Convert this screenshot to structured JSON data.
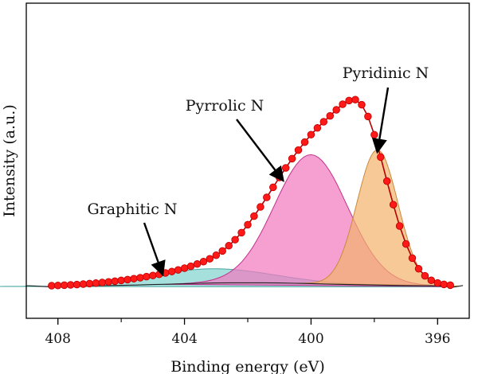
{
  "chart_data": {
    "type": "line",
    "xlabel": "Binding energy (eV)",
    "ylabel": "Intensity (a.u.)",
    "xlim": [
      409,
      395
    ],
    "xticks": [
      408,
      404,
      400,
      396
    ],
    "x_reversed": true,
    "grid": false,
    "background": {
      "x": [
        409,
        408.2,
        408,
        407,
        406,
        405.5,
        405,
        404.5,
        404,
        403.5,
        403,
        402.5,
        402,
        401.5,
        401,
        400.5,
        400,
        399.5,
        399,
        398.5,
        398,
        397.5,
        397,
        396.5,
        396,
        395.5,
        395.2
      ],
      "y": [
        0.5,
        -0.3,
        0.2,
        0.4,
        0.7,
        0.9,
        1.2,
        1.4,
        1.7,
        2.0,
        2.2,
        2.3,
        2.3,
        2.3,
        2.2,
        2.0,
        1.8,
        1.5,
        1.3,
        1.1,
        0.9,
        0.7,
        0.6,
        0.5,
        0.4,
        -0.4,
        0.6
      ]
    },
    "components": [
      {
        "name": "Graphitic N",
        "center": 403.2,
        "height": 9,
        "sigma": 1.9,
        "fill": "#7fd3cf",
        "stroke": "#4aa7a3"
      },
      {
        "name": "Pyrrolic N",
        "center": 400.0,
        "height": 81,
        "sigma": 1.15,
        "fill": "#f277bf",
        "stroke": "#c0308a"
      },
      {
        "name": "Pyridinic N",
        "center": 397.9,
        "height": 85,
        "sigma": 0.65,
        "fill": "#f3b26b",
        "stroke": "#c88a3e"
      }
    ],
    "raw_points": {
      "x": [
        408.2,
        408.0,
        407.8,
        407.6,
        407.4,
        407.2,
        407.0,
        406.8,
        406.6,
        406.4,
        406.2,
        406.0,
        405.8,
        405.6,
        405.4,
        405.2,
        405.0,
        404.8,
        404.6,
        404.4,
        404.2,
        404.0,
        403.8,
        403.6,
        403.4,
        403.2,
        403.0,
        402.8,
        402.6,
        402.4,
        402.2,
        402.0,
        401.8,
        401.6,
        401.4,
        401.2,
        401.0,
        400.8,
        400.6,
        400.4,
        400.2,
        400.0,
        399.8,
        399.6,
        399.4,
        399.2,
        399.0,
        398.8,
        398.6,
        398.4,
        398.2,
        398.0,
        397.8,
        397.6,
        397.4,
        397.2,
        397.0,
        396.8,
        396.6,
        396.4,
        396.2,
        396.0,
        395.8,
        395.6
      ],
      "y": [
        0.5,
        0.6,
        0.8,
        1.0,
        1.2,
        1.5,
        1.8,
        2.1,
        2.5,
        2.9,
        3.3,
        3.8,
        4.3,
        4.9,
        5.5,
        6.2,
        6.9,
        7.6,
        8.5,
        9.4,
        10.4,
        11.5,
        12.7,
        14.1,
        15.6,
        17.4,
        19.6,
        22.3,
        25.6,
        29.4,
        33.8,
        38.8,
        44.2,
        50.0,
        56.0,
        62.3,
        68.5,
        74.5,
        80.3,
        85.7,
        90.7,
        95.4,
        99.6,
        103.5,
        107.2,
        111.0,
        114.5,
        116.8,
        117.4,
        114.2,
        106.8,
        95.3,
        81.3,
        66.2,
        51.4,
        38.0,
        26.7,
        17.8,
        11.1,
        6.7,
        3.9,
        2.2,
        1.3,
        0.8
      ]
    },
    "annotations": [
      {
        "text": "Pyridinic N",
        "arrow_to_x": 397.9,
        "arrow_to_y": 85
      },
      {
        "text": "Pyrrolic N",
        "arrow_to_x": 400.9,
        "arrow_to_y": 67
      },
      {
        "text": "Graphitic N",
        "arrow_to_x": 404.7,
        "arrow_to_y": 8
      }
    ],
    "colors": {
      "points_fill": "#ff1a1a",
      "points_stroke": "#c40000",
      "fit_line": "#b30000",
      "background_line": "#222222"
    }
  }
}
